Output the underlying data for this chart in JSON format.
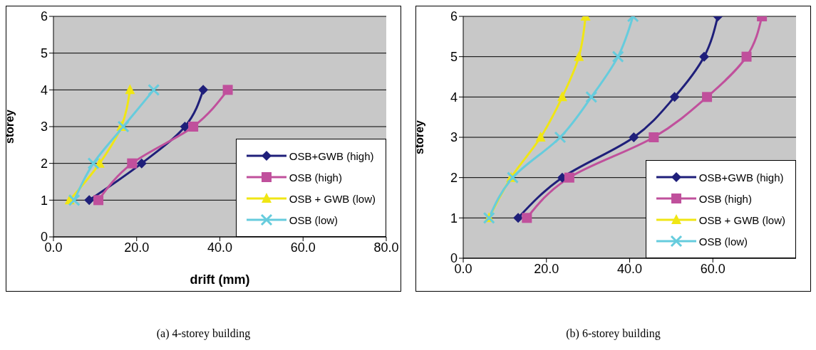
{
  "chart_data": [
    {
      "type": "line",
      "xlabel": "drift (mm)",
      "ylabel": "storey",
      "annotations": [
        "(a) 4-storey building"
      ],
      "xlim": [
        0,
        80
      ],
      "xticks": [
        {
          "value": 0,
          "label": "0.0"
        },
        {
          "value": 20,
          "label": "20.0"
        },
        {
          "value": 40,
          "label": "40.0"
        },
        {
          "value": 60,
          "label": "60.0"
        },
        {
          "value": 80,
          "label": "80.0"
        }
      ],
      "ylim": [
        0,
        6
      ],
      "yticks": [
        0,
        1,
        2,
        3,
        4,
        5,
        6
      ],
      "grid": "y",
      "legend": "bottom right",
      "series": [
        {
          "name": "OSB+GWB (high)",
          "color": "#1f1f7a",
          "marker": "diamond",
          "x": [
            8.6,
            21.2,
            31.6,
            36.0
          ],
          "values": [
            1,
            2,
            3,
            4
          ]
        },
        {
          "name": "OSB (high)",
          "color": "#c0509c",
          "marker": "square",
          "x": [
            10.8,
            18.9,
            33.6,
            41.9
          ],
          "values": [
            1,
            2,
            3,
            4
          ]
        },
        {
          "name": "OSB + GWB (low)",
          "color": "#f0e614",
          "marker": "triangle",
          "x": [
            3.9,
            11.1,
            16.3,
            18.4
          ],
          "values": [
            1,
            2,
            3,
            4
          ]
        },
        {
          "name": "OSB (low)",
          "color": "#66ccdd",
          "marker": "cross",
          "x": [
            5.0,
            9.6,
            16.8,
            24.1
          ],
          "values": [
            1,
            2,
            3,
            4
          ]
        }
      ]
    },
    {
      "type": "line",
      "ylabel": "storey",
      "annotations": [
        "(b) 6-storey building"
      ],
      "xlim": [
        0,
        80
      ],
      "xticks": [
        {
          "value": 0,
          "label": "0.0"
        },
        {
          "value": 20,
          "label": "20.0"
        },
        {
          "value": 40,
          "label": "40.0"
        },
        {
          "value": 60,
          "label": "60.0"
        }
      ],
      "ylim": [
        0,
        6
      ],
      "yticks": [
        0,
        1,
        2,
        3,
        4,
        5,
        6
      ],
      "grid": "y",
      "legend": "bottom right",
      "series": [
        {
          "name": "OSB+GWB (high)",
          "color": "#1f1f7a",
          "marker": "diamond",
          "x": [
            13.2,
            23.8,
            41.0,
            50.8,
            57.9,
            61.2
          ],
          "values": [
            1,
            2,
            3,
            4,
            5,
            6
          ]
        },
        {
          "name": "OSB (high)",
          "color": "#c0509c",
          "marker": "square",
          "x": [
            15.3,
            25.5,
            45.8,
            58.6,
            68.1,
            71.8
          ],
          "values": [
            1,
            2,
            3,
            4,
            5,
            6
          ]
        },
        {
          "name": "OSB + GWB (low)",
          "color": "#f0e614",
          "marker": "triangle",
          "x": [
            6.2,
            11.5,
            18.6,
            23.8,
            27.8,
            29.4
          ],
          "values": [
            1,
            2,
            3,
            4,
            5,
            6
          ]
        },
        {
          "name": "OSB (low)",
          "color": "#66ccdd",
          "marker": "cross",
          "x": [
            6.2,
            11.9,
            23.3,
            30.8,
            37.2,
            40.8
          ],
          "values": [
            1,
            2,
            3,
            4,
            5,
            6
          ]
        }
      ]
    }
  ]
}
